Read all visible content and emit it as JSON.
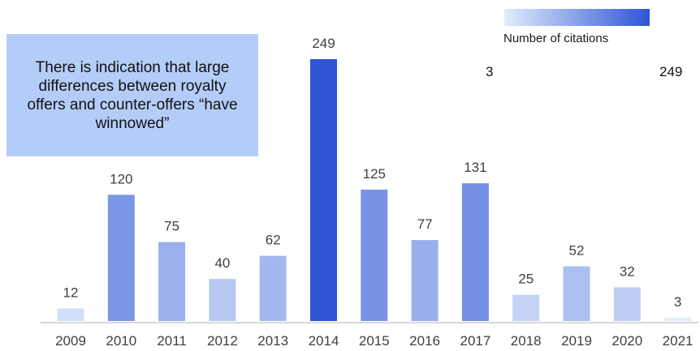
{
  "chart_data": {
    "type": "bar",
    "categories": [
      "2009",
      "2010",
      "2011",
      "2012",
      "2013",
      "2014",
      "2015",
      "2016",
      "2017",
      "2018",
      "2019",
      "2020",
      "2021"
    ],
    "values": [
      12,
      120,
      75,
      40,
      62,
      249,
      125,
      77,
      131,
      25,
      52,
      32,
      3
    ],
    "title": "",
    "xlabel": "",
    "ylabel": "",
    "ylim": [
      0,
      249
    ],
    "grid": false,
    "legend": {
      "label": "Number of citations",
      "min_label": "3",
      "max_label": "249",
      "color_low": "#e1ecfd",
      "color_high": "#2f55d4",
      "placement": "top-right"
    }
  },
  "annotation": {
    "text": "There is indication that large differences between royalty offers and counter-offers “have winnowed”"
  },
  "colors": {
    "axis": "#b0b0b0",
    "callout_bg": "#b4cdf8"
  }
}
